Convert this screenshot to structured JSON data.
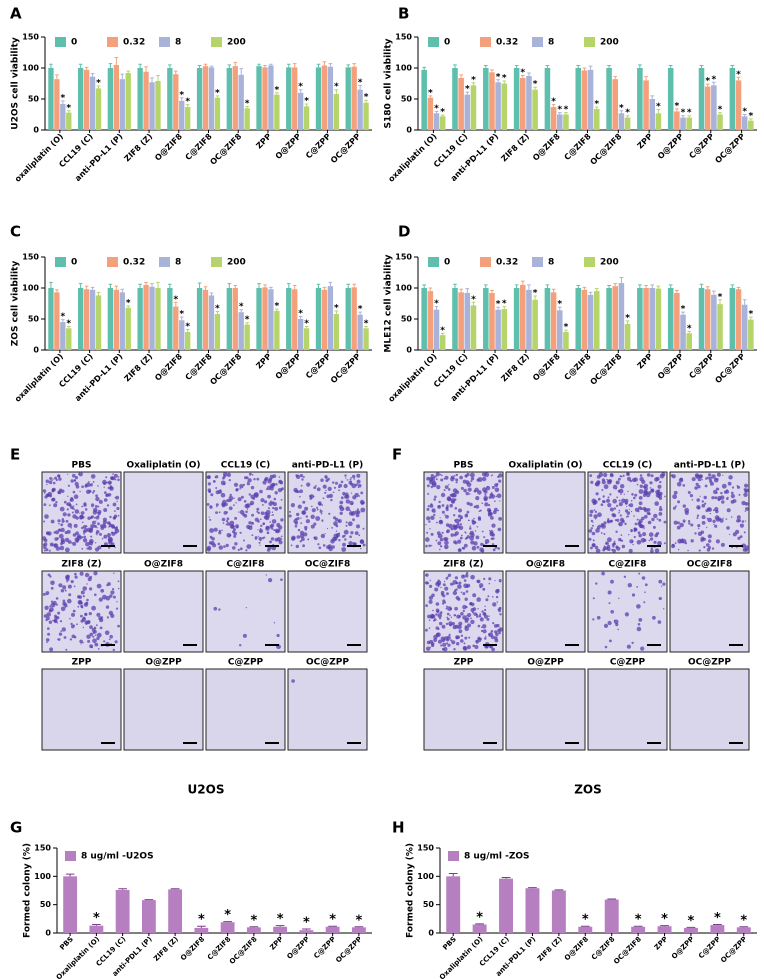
{
  "chart_data": [
    {
      "type": "bar",
      "panel": "A",
      "ylabel": "U2OS cell viability",
      "ylim": [
        0,
        150
      ],
      "yticks": [
        0,
        50,
        100,
        150
      ],
      "legend": "top",
      "categories": [
        "oxaliplatin (O)",
        "CCL19 (C)",
        "anti-PD-L1 (P)",
        "ZIF8 (Z)",
        "O@ZIF8",
        "C@ZIF8",
        "OC@ZIF8",
        "ZPP",
        "O@ZPP",
        "C@ZPP",
        "OC@ZPP"
      ],
      "series": [
        {
          "name": "0",
          "color": "#5fbfad",
          "values": [
            100,
            100,
            100,
            100,
            100,
            100,
            100,
            103,
            101,
            101,
            101
          ],
          "errors": [
            6,
            6,
            7,
            6,
            5,
            4,
            5,
            3,
            5,
            5,
            4
          ],
          "labels": [
            null,
            null,
            null,
            null,
            null,
            null,
            null,
            null,
            null,
            null,
            null
          ]
        },
        {
          "name": "0.32",
          "color": "#f5a07c",
          "values": [
            82,
            97,
            105,
            94,
            90,
            103,
            103,
            101,
            101,
            104,
            102
          ],
          "errors": [
            7,
            4,
            12,
            8,
            5,
            3,
            6,
            3,
            6,
            6,
            5
          ],
          "labels": [
            null,
            null,
            null,
            null,
            null,
            null,
            null,
            null,
            null,
            null,
            null
          ]
        },
        {
          "name": "8",
          "color": "#a9b3d9",
          "values": [
            42,
            86,
            82,
            77,
            47,
            101,
            89,
            104,
            60,
            102,
            65
          ],
          "errors": [
            5,
            5,
            8,
            7,
            5,
            2,
            10,
            2,
            5,
            5,
            7
          ],
          "labels": [
            "*",
            null,
            null,
            null,
            "*",
            null,
            null,
            null,
            "*",
            null,
            "*"
          ]
        },
        {
          "name": "200",
          "color": "#b5d56a",
          "values": [
            28,
            67,
            92,
            79,
            37,
            52,
            35,
            57,
            38,
            58,
            44
          ],
          "errors": [
            3,
            4,
            3,
            9,
            4,
            3,
            3,
            3,
            4,
            7,
            4
          ],
          "labels": [
            "*",
            "*",
            null,
            null,
            "*",
            "*",
            "*",
            "*",
            "*",
            "*",
            "*"
          ]
        }
      ]
    },
    {
      "type": "bar",
      "panel": "B",
      "ylabel": "S180 cell viability",
      "ylim": [
        0,
        150
      ],
      "yticks": [
        0,
        50,
        100,
        150
      ],
      "legend": "top",
      "categories": [
        "oxaliplatin (O)",
        "CCL19 (C)",
        "anti-PD-L1 (P)",
        "ZIF8 (Z)",
        "O@ZIF8",
        "C@ZIF8",
        "OC@ZIF8",
        "ZPP",
        "O@ZPP",
        "C@ZPP",
        "OC@ZPP"
      ],
      "series": [
        {
          "name": "0",
          "color": "#5fbfad",
          "values": [
            97,
            100,
            100,
            100,
            100,
            100,
            100,
            100,
            100,
            100,
            100
          ],
          "errors": [
            4,
            5,
            4,
            4,
            4,
            4,
            4,
            5,
            4,
            4,
            4
          ],
          "labels": [
            null,
            null,
            null,
            null,
            null,
            null,
            null,
            null,
            null,
            null,
            null
          ]
        },
        {
          "name": "0.32",
          "color": "#f5a07c",
          "values": [
            52,
            84,
            93,
            84,
            37,
            96,
            82,
            80,
            30,
            70,
            80
          ],
          "errors": [
            3,
            5,
            4,
            4,
            4,
            4,
            4,
            6,
            4,
            4,
            5
          ],
          "labels": [
            "*",
            null,
            null,
            "*",
            "*",
            null,
            null,
            null,
            "*",
            "*",
            "*"
          ]
        },
        {
          "name": "8",
          "color": "#a9b3d9",
          "values": [
            27,
            57,
            77,
            87,
            25,
            97,
            27,
            50,
            20,
            72,
            22
          ],
          "errors": [
            3,
            4,
            4,
            5,
            3,
            6,
            4,
            5,
            3,
            5,
            3
          ],
          "labels": [
            "*",
            "*",
            "*",
            null,
            "*",
            null,
            "*",
            null,
            "*",
            "*",
            "*"
          ]
        },
        {
          "name": "200",
          "color": "#b5d56a",
          "values": [
            22,
            72,
            75,
            65,
            25,
            34,
            20,
            27,
            20,
            25,
            15
          ],
          "errors": [
            2,
            4,
            4,
            4,
            3,
            3,
            3,
            6,
            3,
            3,
            3
          ],
          "labels": [
            "*",
            "*",
            "*",
            "*",
            "*",
            "*",
            "*",
            "*",
            "*",
            "*",
            "*"
          ]
        }
      ]
    },
    {
      "type": "bar",
      "panel": "C",
      "ylabel": "ZOS cell viability",
      "ylim": [
        0,
        150
      ],
      "yticks": [
        0,
        50,
        100,
        150
      ],
      "legend": "top",
      "categories": [
        "oxaliplatin (O)",
        "CCL19 (C)",
        "anti-PD-L1 (P)",
        "ZIF8 (Z)",
        "O@ZIF8",
        "C@ZIF8",
        "OC@ZIF8",
        "ZPP",
        "O@ZPP",
        "C@ZPP",
        "OC@ZPP"
      ],
      "series": [
        {
          "name": "0",
          "color": "#5fbfad",
          "values": [
            100,
            100,
            100,
            100,
            100,
            100,
            100,
            100,
            100,
            100,
            100
          ],
          "errors": [
            9,
            7,
            6,
            6,
            6,
            8,
            7,
            7,
            7,
            6,
            6
          ],
          "labels": [
            null,
            null,
            null,
            null,
            null,
            null,
            null,
            null,
            null,
            null,
            null
          ]
        },
        {
          "name": "0.32",
          "color": "#f5a07c",
          "values": [
            93,
            98,
            97,
            105,
            70,
            97,
            100,
            101,
            98,
            97,
            101
          ],
          "errors": [
            4,
            5,
            6,
            4,
            7,
            5,
            4,
            4,
            6,
            4,
            5
          ],
          "labels": [
            null,
            null,
            null,
            null,
            "*",
            null,
            null,
            null,
            null,
            null,
            null
          ]
        },
        {
          "name": "8",
          "color": "#a9b3d9",
          "values": [
            45,
            97,
            93,
            102,
            48,
            88,
            61,
            98,
            50,
            103,
            57
          ],
          "errors": [
            4,
            4,
            5,
            5,
            5,
            4,
            4,
            3,
            4,
            6,
            4
          ],
          "labels": [
            "*",
            null,
            null,
            null,
            "*",
            null,
            "*",
            null,
            "*",
            null,
            "*"
          ]
        },
        {
          "name": "200",
          "color": "#b5d56a",
          "values": [
            35,
            88,
            68,
            100,
            29,
            58,
            41,
            63,
            35,
            58,
            35
          ],
          "errors": [
            3,
            5,
            3,
            9,
            4,
            4,
            3,
            3,
            3,
            5,
            3
          ],
          "labels": [
            "*",
            null,
            "*",
            null,
            "*",
            "*",
            "*",
            "*",
            "*",
            "*",
            "*"
          ]
        }
      ]
    },
    {
      "type": "bar",
      "panel": "D",
      "ylabel": "MLE12 cell viability",
      "ylim": [
        0,
        150
      ],
      "yticks": [
        0,
        50,
        100,
        150
      ],
      "legend": "top",
      "categories": [
        "oxaliplatin (O)",
        "CCL19 (C)",
        "anti-PD-L1 (P)",
        "ZIF8 (Z)",
        "O@ZIF8",
        "C@ZIF8",
        "OC@ZIF8",
        "ZPP",
        "O@ZPP",
        "C@ZPP",
        "OC@ZPP"
      ],
      "series": [
        {
          "name": "0",
          "color": "#5fbfad",
          "values": [
            100,
            100,
            100,
            100,
            100,
            100,
            100,
            100,
            100,
            100,
            100
          ],
          "errors": [
            5,
            6,
            5,
            5,
            5,
            4,
            4,
            5,
            5,
            6,
            5
          ],
          "labels": [
            null,
            null,
            null,
            null,
            null,
            null,
            null,
            null,
            null,
            null,
            null
          ]
        },
        {
          "name": "0.32",
          "color": "#f5a07c",
          "values": [
            95,
            93,
            92,
            105,
            93,
            97,
            103,
            100,
            92,
            98,
            98
          ],
          "errors": [
            5,
            5,
            4,
            6,
            5,
            4,
            4,
            4,
            4,
            4,
            3
          ],
          "labels": [
            null,
            null,
            null,
            null,
            null,
            null,
            null,
            null,
            null,
            null,
            null
          ]
        },
        {
          "name": "8",
          "color": "#a9b3d9",
          "values": [
            65,
            92,
            65,
            97,
            64,
            89,
            108,
            100,
            57,
            89,
            73
          ],
          "errors": [
            5,
            7,
            4,
            8,
            5,
            4,
            9,
            5,
            4,
            6,
            8
          ],
          "labels": [
            "*",
            null,
            "*",
            null,
            "*",
            null,
            null,
            null,
            "*",
            null,
            null
          ]
        },
        {
          "name": "200",
          "color": "#b5d56a",
          "values": [
            24,
            72,
            66,
            81,
            29,
            95,
            42,
            99,
            27,
            74,
            49
          ],
          "errors": [
            3,
            5,
            4,
            6,
            3,
            4,
            5,
            4,
            3,
            7,
            4
          ],
          "labels": [
            "*",
            "*",
            "*",
            "*",
            "*",
            null,
            "*",
            null,
            "*",
            "*",
            "*"
          ]
        }
      ]
    },
    {
      "type": "bar",
      "panel": "G",
      "ylabel": "Formed colony (%)",
      "ylim": [
        0,
        150
      ],
      "yticks": [
        0,
        50,
        100,
        150
      ],
      "legend": "top",
      "categories": [
        "PBS",
        "Oxaliplatin (O)",
        "CCL19 (C)",
        "anti-PDL1 (P)",
        "ZIF8 (Z)",
        "O@ZIF8",
        "C@ZIF8",
        "OC@ZIF8",
        "ZPP",
        "O@ZPP",
        "C@ZPP",
        "OC@ZPP"
      ],
      "series": [
        {
          "name": "8 ug/ml -U2OS",
          "color": "#b57fc0",
          "values": [
            100,
            13,
            76,
            58,
            77,
            9,
            19,
            10,
            11,
            5,
            11,
            10
          ],
          "errors": [
            4,
            2,
            2,
            1,
            1,
            3,
            1,
            1,
            2,
            2,
            1,
            1
          ],
          "labels": [
            null,
            "*",
            null,
            null,
            null,
            "*",
            "*",
            "*",
            "*",
            "*",
            "*",
            "*"
          ]
        }
      ]
    },
    {
      "type": "bar",
      "panel": "H",
      "ylabel": "Formed colony (%)",
      "ylim": [
        0,
        150
      ],
      "yticks": [
        0,
        50,
        100,
        150
      ],
      "legend": "top",
      "categories": [
        "PBS",
        "Oxaliplatin (O)",
        "CCL19 (C)",
        "anti-PDL1 (P)",
        "ZIF8 (Z)",
        "O@ZIF8",
        "C@ZIF8",
        "OC@ZIF8",
        "ZPP",
        "O@ZPP",
        "C@ZPP",
        "OC@ZPP"
      ],
      "series": [
        {
          "name": "8 ug/ml -ZOS",
          "color": "#b57fc0",
          "values": [
            100,
            15,
            96,
            79,
            75,
            11,
            59,
            11,
            12,
            9,
            14,
            10
          ],
          "errors": [
            5,
            1,
            2,
            1,
            1,
            1,
            1,
            1,
            1,
            1,
            1,
            1
          ],
          "labels": [
            null,
            "*",
            null,
            null,
            null,
            "*",
            null,
            "*",
            "*",
            "*",
            "*",
            "*"
          ]
        }
      ]
    }
  ],
  "image_panels": [
    {
      "panel": "E",
      "caption": "U2OS",
      "titles": [
        "PBS",
        "Oxaliplatin (O)",
        "CCL19 (C)",
        "anti-PD-L1 (P)",
        "ZIF8 (Z)",
        "O@ZIF8",
        "C@ZIF8",
        "OC@ZIF8",
        "ZPP",
        "O@ZPP",
        "C@ZPP",
        "OC@ZPP"
      ],
      "title_colors": [
        "#9bbb59",
        "#2e9e5b",
        "#2e9e5b",
        "#2e9e5b",
        "#2a9fd0",
        "#2a9fd0",
        "#2a9fd0",
        "#2a9fd0",
        "#1f3a5f",
        "#1f3a5f",
        "#1f3a5f",
        "#1f3a5f"
      ]
    },
    {
      "panel": "F",
      "caption": "ZOS",
      "titles": [
        "PBS",
        "Oxaliplatin (O)",
        "CCL19 (C)",
        "anti-PD-L1 (P)",
        "ZIF8 (Z)",
        "O@ZIF8",
        "C@ZIF8",
        "OC@ZIF8",
        "ZPP",
        "O@ZPP",
        "C@ZPP",
        "OC@ZPP"
      ],
      "title_colors": [
        "#9bbb59",
        "#2e9e5b",
        "#2e9e5b",
        "#2e9e5b",
        "#2a9fd0",
        "#2a9fd0",
        "#2a9fd0",
        "#2a9fd0",
        "#1f3a5f",
        "#1f3a5f",
        "#1f3a5f",
        "#1f3a5f"
      ]
    }
  ]
}
